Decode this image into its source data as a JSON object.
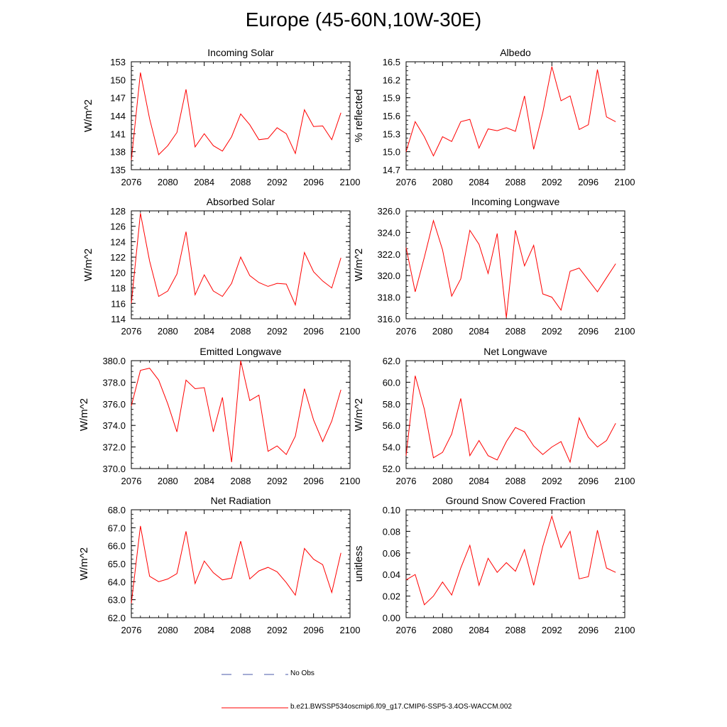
{
  "title": "Europe (45-60N,10W-30E)",
  "colors": {
    "series": "#ff0000",
    "obs": "#4a5aa8",
    "axis": "#000000"
  },
  "legend": [
    {
      "label": "No Obs",
      "style": "dashed",
      "color": "#4a5aa8"
    },
    {
      "label": "b.e21.BWSSP534oscmip6.f09_g17.CMIP6-SSP5-3.4OS-WACCM.002",
      "style": "solid",
      "color": "#ff0000"
    }
  ],
  "chart_data": [
    {
      "type": "line",
      "title": "Incoming Solar",
      "ylabel": "W/m^2",
      "xlim": [
        2076,
        2100
      ],
      "ylim": [
        135,
        153
      ],
      "xticks": [
        "2076",
        "2080",
        "2084",
        "2088",
        "2092",
        "2096",
        "2100"
      ],
      "yticks": [
        "135",
        "138",
        "141",
        "144",
        "147",
        "150",
        "153"
      ],
      "x": [
        2076,
        2077,
        2078,
        2079,
        2080,
        2081,
        2082,
        2083,
        2084,
        2085,
        2086,
        2087,
        2088,
        2089,
        2090,
        2091,
        2092,
        2093,
        2094,
        2095,
        2096,
        2097,
        2098,
        2099
      ],
      "values": [
        136.6,
        151.2,
        143.5,
        137.5,
        139.0,
        141.2,
        148.4,
        138.8,
        141.0,
        139.0,
        138.1,
        140.5,
        144.3,
        142.5,
        140.0,
        140.2,
        142.0,
        141.0,
        137.7,
        145.0,
        142.2,
        142.3,
        140.0,
        144.5
      ]
    },
    {
      "type": "line",
      "title": "Albedo",
      "ylabel": "% reflected",
      "xlim": [
        2076,
        2100
      ],
      "ylim": [
        14.7,
        16.5
      ],
      "xticks": [
        "2076",
        "2080",
        "2084",
        "2088",
        "2092",
        "2096",
        "2100"
      ],
      "yticks": [
        "14.7",
        "15.0",
        "15.3",
        "15.6",
        "15.9",
        "16.2",
        "16.5"
      ],
      "x": [
        2076,
        2077,
        2078,
        2079,
        2080,
        2081,
        2082,
        2083,
        2084,
        2085,
        2086,
        2087,
        2088,
        2089,
        2090,
        2091,
        2092,
        2093,
        2094,
        2095,
        2096,
        2097,
        2098,
        2099
      ],
      "values": [
        15.0,
        15.5,
        15.25,
        14.93,
        15.25,
        15.17,
        15.5,
        15.54,
        15.06,
        15.38,
        15.35,
        15.4,
        15.34,
        15.93,
        15.04,
        15.65,
        16.42,
        15.85,
        15.93,
        15.37,
        15.45,
        16.37,
        15.58,
        15.5
      ]
    },
    {
      "type": "line",
      "title": "Absorbed Solar",
      "ylabel": "W/m^2",
      "xlim": [
        2076,
        2100
      ],
      "ylim": [
        114,
        128
      ],
      "xticks": [
        "2076",
        "2080",
        "2084",
        "2088",
        "2092",
        "2096",
        "2100"
      ],
      "yticks": [
        "114",
        "116",
        "118",
        "120",
        "122",
        "124",
        "126",
        "128"
      ],
      "x": [
        2076,
        2077,
        2078,
        2079,
        2080,
        2081,
        2082,
        2083,
        2084,
        2085,
        2086,
        2087,
        2088,
        2089,
        2090,
        2091,
        2092,
        2093,
        2094,
        2095,
        2096,
        2097,
        2098,
        2099
      ],
      "values": [
        116.0,
        127.7,
        121.5,
        116.9,
        117.6,
        119.8,
        125.3,
        117.1,
        119.7,
        117.6,
        116.9,
        118.6,
        122.0,
        119.6,
        118.7,
        118.2,
        118.6,
        118.5,
        115.8,
        122.6,
        120.1,
        118.9,
        118.0,
        121.9
      ]
    },
    {
      "type": "line",
      "title": "Incoming Longwave",
      "ylabel": "W/m^2",
      "xlim": [
        2076,
        2100
      ],
      "ylim": [
        316,
        326
      ],
      "xticks": [
        "2076",
        "2080",
        "2084",
        "2088",
        "2092",
        "2096",
        "2100"
      ],
      "yticks": [
        "316.0",
        "318.0",
        "320.0",
        "322.0",
        "324.0",
        "326.0"
      ],
      "x": [
        2076,
        2077,
        2078,
        2079,
        2080,
        2081,
        2082,
        2083,
        2084,
        2085,
        2086,
        2087,
        2088,
        2089,
        2090,
        2091,
        2092,
        2093,
        2094,
        2095,
        2096,
        2097,
        2098,
        2099
      ],
      "values": [
        322.6,
        318.5,
        321.7,
        325.1,
        322.4,
        318.1,
        319.7,
        324.2,
        322.9,
        320.2,
        323.9,
        316.1,
        324.2,
        320.9,
        322.8,
        318.3,
        318.0,
        316.8,
        320.4,
        320.7,
        319.6,
        318.5,
        319.8,
        321.1
      ]
    },
    {
      "type": "line",
      "title": "Emitted Longwave",
      "ylabel": "W/m^2",
      "xlim": [
        2076,
        2100
      ],
      "ylim": [
        370,
        380
      ],
      "xticks": [
        "2076",
        "2080",
        "2084",
        "2088",
        "2092",
        "2096",
        "2100"
      ],
      "yticks": [
        "370.0",
        "372.0",
        "374.0",
        "376.0",
        "378.0",
        "380.0"
      ],
      "x": [
        2076,
        2077,
        2078,
        2079,
        2080,
        2081,
        2082,
        2083,
        2084,
        2085,
        2086,
        2087,
        2088,
        2089,
        2090,
        2091,
        2092,
        2093,
        2094,
        2095,
        2096,
        2097,
        2098,
        2099
      ],
      "values": [
        375.8,
        379.1,
        379.3,
        378.2,
        376.0,
        373.4,
        378.2,
        377.4,
        377.5,
        373.4,
        376.6,
        370.6,
        380.0,
        376.3,
        376.8,
        371.6,
        372.1,
        371.3,
        373.0,
        377.4,
        374.5,
        372.5,
        374.4,
        377.3
      ]
    },
    {
      "type": "line",
      "title": "Net Longwave",
      "ylabel": "W/m^2",
      "xlim": [
        2076,
        2100
      ],
      "ylim": [
        52,
        62
      ],
      "xticks": [
        "2076",
        "2080",
        "2084",
        "2088",
        "2092",
        "2096",
        "2100"
      ],
      "yticks": [
        "52.0",
        "54.0",
        "56.0",
        "58.0",
        "60.0",
        "62.0"
      ],
      "x": [
        2076,
        2077,
        2078,
        2079,
        2080,
        2081,
        2082,
        2083,
        2084,
        2085,
        2086,
        2087,
        2088,
        2089,
        2090,
        2091,
        2092,
        2093,
        2094,
        2095,
        2096,
        2097,
        2098,
        2099
      ],
      "values": [
        53.2,
        60.6,
        57.5,
        53.0,
        53.5,
        55.2,
        58.5,
        53.2,
        54.6,
        53.2,
        52.8,
        54.5,
        55.8,
        55.4,
        54.1,
        53.3,
        54.0,
        54.5,
        52.6,
        56.7,
        54.9,
        54.0,
        54.6,
        56.2
      ]
    },
    {
      "type": "line",
      "title": "Net Radiation",
      "ylabel": "W/m^2",
      "xlim": [
        2076,
        2100
      ],
      "ylim": [
        62,
        68
      ],
      "xticks": [
        "2076",
        "2080",
        "2084",
        "2088",
        "2092",
        "2096",
        "2100"
      ],
      "yticks": [
        "62.0",
        "63.0",
        "64.0",
        "65.0",
        "66.0",
        "67.0",
        "68.0"
      ],
      "x": [
        2076,
        2077,
        2078,
        2079,
        2080,
        2081,
        2082,
        2083,
        2084,
        2085,
        2086,
        2087,
        2088,
        2089,
        2090,
        2091,
        2092,
        2093,
        2094,
        2095,
        2096,
        2097,
        2098,
        2099
      ],
      "values": [
        62.8,
        67.1,
        64.3,
        64.0,
        64.15,
        64.45,
        66.8,
        63.9,
        65.15,
        64.5,
        64.1,
        64.2,
        66.25,
        64.15,
        64.6,
        64.8,
        64.55,
        63.95,
        63.25,
        65.85,
        65.25,
        64.95,
        63.4,
        65.6
      ]
    },
    {
      "type": "line",
      "title": "Ground Snow Covered Fraction",
      "ylabel": "unitless",
      "xlim": [
        2076,
        2100
      ],
      "ylim": [
        0.0,
        0.1
      ],
      "xticks": [
        "2076",
        "2080",
        "2084",
        "2088",
        "2092",
        "2096",
        "2100"
      ],
      "yticks": [
        "0.00",
        "0.02",
        "0.04",
        "0.06",
        "0.08",
        "0.10"
      ],
      "x": [
        2076,
        2077,
        2078,
        2079,
        2080,
        2081,
        2082,
        2083,
        2084,
        2085,
        2086,
        2087,
        2088,
        2089,
        2090,
        2091,
        2092,
        2093,
        2094,
        2095,
        2096,
        2097,
        2098,
        2099
      ],
      "values": [
        0.035,
        0.04,
        0.012,
        0.02,
        0.033,
        0.021,
        0.046,
        0.067,
        0.03,
        0.055,
        0.042,
        0.051,
        0.043,
        0.063,
        0.03,
        0.066,
        0.094,
        0.065,
        0.08,
        0.036,
        0.038,
        0.081,
        0.046,
        0.042
      ]
    }
  ]
}
